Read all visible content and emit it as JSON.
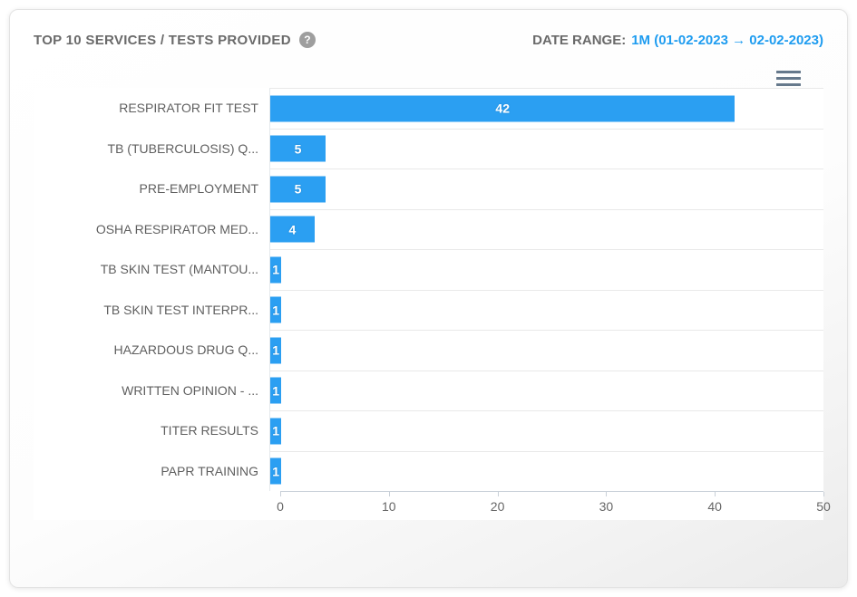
{
  "card": {
    "title": "TOP 10 SERVICES / TESTS PROVIDED",
    "help_icon": "question-mark-circle-icon",
    "help_glyph": "?",
    "date_range": {
      "label": "DATE RANGE:",
      "value": "1M (01-02-2023 → 02-02-2023)"
    },
    "menu_icon": "hamburger-menu-icon"
  },
  "chart_data": {
    "type": "bar",
    "orientation": "horizontal",
    "title": "TOP 10 SERVICES / TESTS PROVIDED",
    "categories": [
      "RESPIRATOR FIT TEST",
      "TB (TUBERCULOSIS) Q...",
      "PRE-EMPLOYMENT",
      "OSHA RESPIRATOR MED...",
      "TB SKIN TEST (MANTOU...",
      "TB SKIN TEST INTERPR...",
      "HAZARDOUS DRUG Q...",
      "WRITTEN OPINION - ...",
      "TITER RESULTS",
      "PAPR TRAINING"
    ],
    "values": [
      42,
      5,
      5,
      4,
      1,
      1,
      1,
      1,
      1,
      1
    ],
    "xlabel": "",
    "ylabel": "",
    "xlim": [
      0,
      50
    ],
    "x_ticks": [
      0,
      10,
      20,
      30,
      40,
      50
    ],
    "grid": true,
    "legend": false,
    "bar_color": "#2b9ff2",
    "data_label_color": "#ffffff"
  },
  "colors": {
    "accent_blue": "#1e9cf0",
    "bar_blue": "#2b9ff2",
    "title_gray": "#6a6a6a",
    "category_label_gray": "#5f5f5f",
    "axis_label_gray": "#666666",
    "gridline": "#e9e9e9",
    "axis_line": "#c9d0d8",
    "menu_icon_color": "#66798c",
    "help_icon_bg": "#9e9e9e"
  }
}
